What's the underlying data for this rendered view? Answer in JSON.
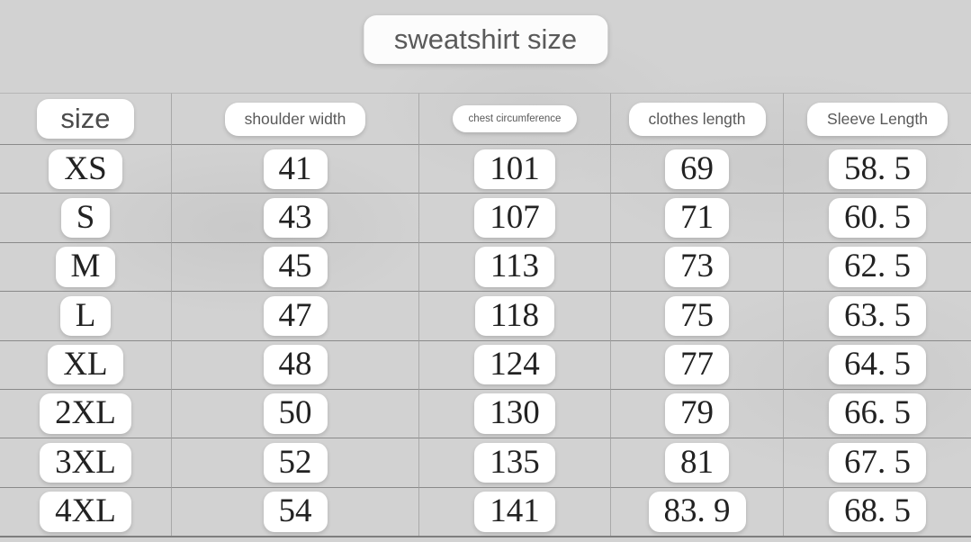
{
  "title": "sweatshirt size",
  "table": {
    "headers": [
      "size",
      "shoulder width",
      "chest circumference",
      "clothes length",
      "Sleeve Length"
    ],
    "rows": [
      [
        "XS",
        "41",
        "101",
        "69",
        "58. 5"
      ],
      [
        "S",
        "43",
        "107",
        "71",
        "60. 5"
      ],
      [
        "M",
        "45",
        "113",
        "73",
        "62. 5"
      ],
      [
        "L",
        "47",
        "118",
        "75",
        "63. 5"
      ],
      [
        "XL",
        "48",
        "124",
        "77",
        "64. 5"
      ],
      [
        "2XL",
        "50",
        "130",
        "79",
        "66. 5"
      ],
      [
        "3XL",
        "52",
        "135",
        "81",
        "67. 5"
      ],
      [
        "4XL",
        "54",
        "141",
        "83. 9",
        "68. 5"
      ]
    ]
  },
  "chart_data": {
    "type": "table",
    "title": "sweatshirt size",
    "columns": [
      "size",
      "shoulder width",
      "chest circumference",
      "clothes length",
      "Sleeve Length"
    ],
    "rows": [
      [
        "XS",
        41,
        101,
        69,
        58.5
      ],
      [
        "S",
        43,
        107,
        71,
        60.5
      ],
      [
        "M",
        45,
        113,
        73,
        62.5
      ],
      [
        "L",
        47,
        118,
        75,
        63.5
      ],
      [
        "XL",
        48,
        124,
        77,
        64.5
      ],
      [
        "2XL",
        50,
        130,
        79,
        66.5
      ],
      [
        "3XL",
        52,
        135,
        81,
        67.5
      ],
      [
        "4XL",
        54,
        141,
        83.9,
        68.5
      ]
    ]
  },
  "colors": {
    "background": "#d2d2d2",
    "pill_background": "#ffffff",
    "data_text": "#222222",
    "header_text": "#595959",
    "grid_line_dark": "#8a8a8a",
    "grid_line_light": "#a9a9a9"
  }
}
